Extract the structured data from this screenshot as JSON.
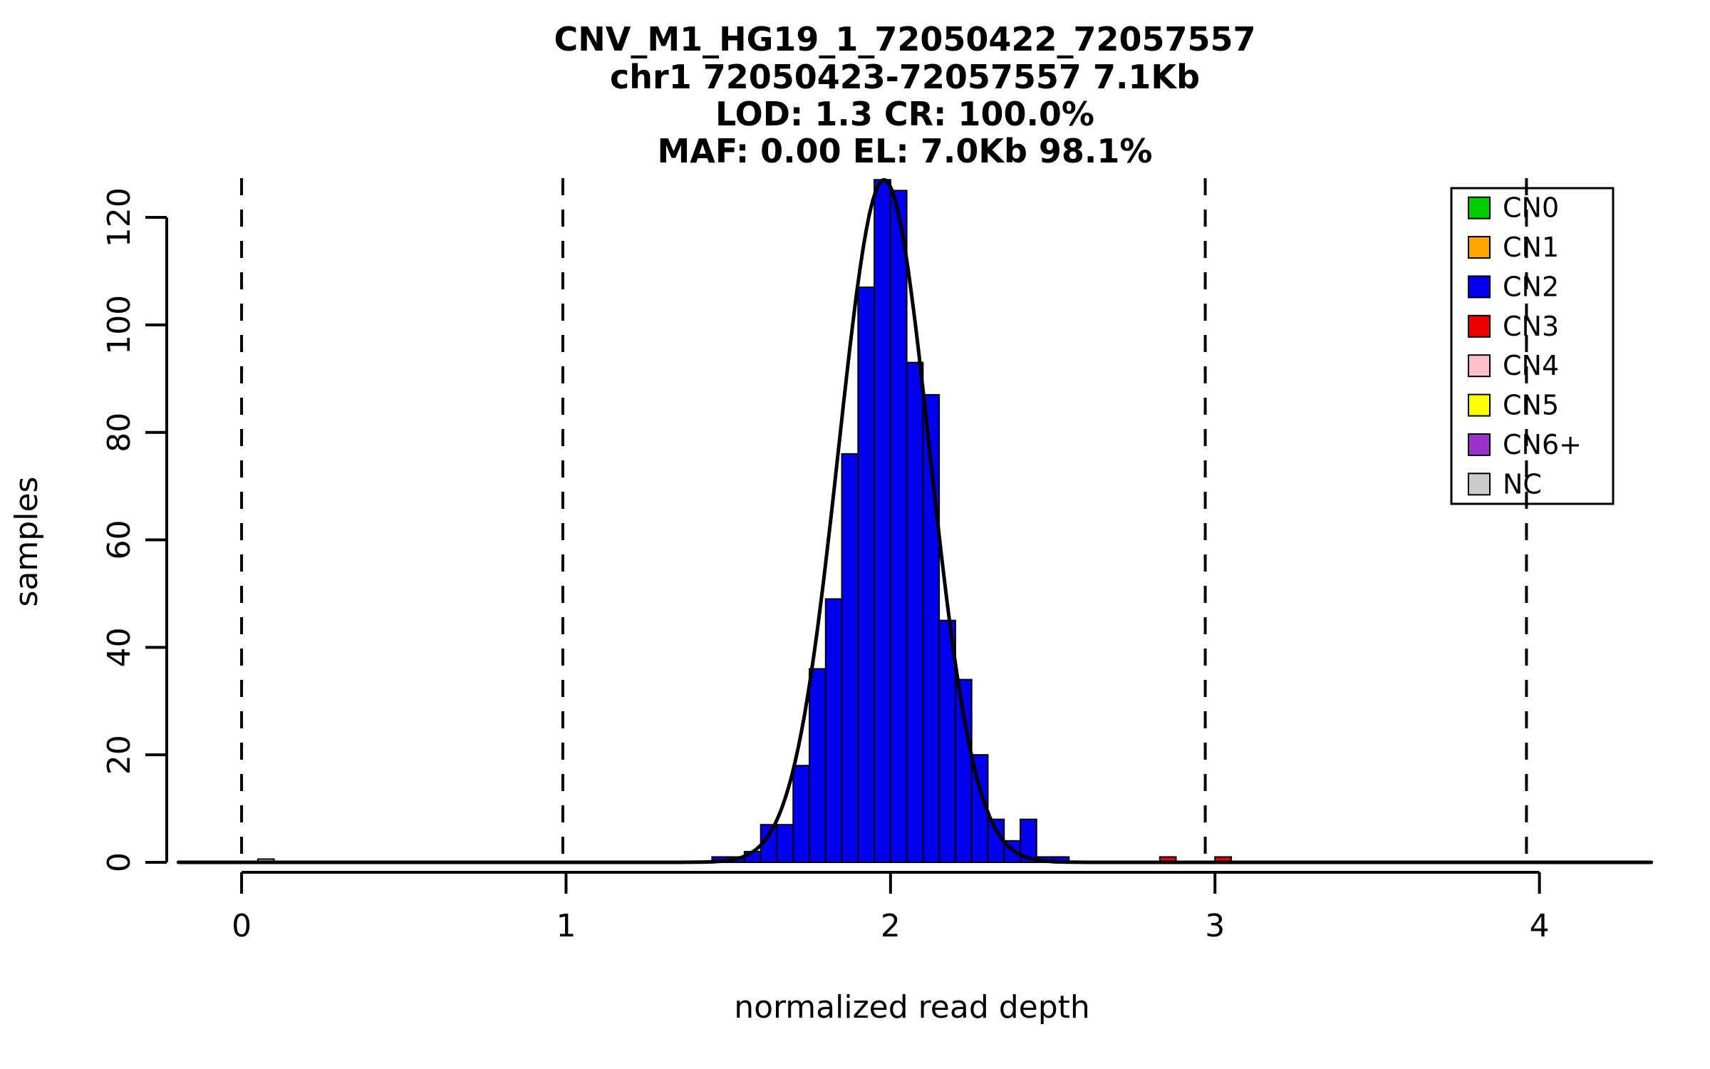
{
  "title": {
    "line1": "CNV_M1_HG19_1_72050422_72057557",
    "line2": "chr1 72050423-72057557 7.1Kb",
    "line3": "LOD: 1.3 CR: 100.0%",
    "line4": "MAF: 0.00 EL: 7.0Kb 98.1%"
  },
  "axes": {
    "x_label": "normalized read depth",
    "y_label": "samples",
    "x_ticks": [
      0,
      1,
      2,
      3,
      4
    ],
    "y_ticks": [
      0,
      20,
      40,
      60,
      80,
      100,
      120
    ],
    "xlim": [
      -0.2,
      4.35
    ],
    "ylim": [
      0,
      127.3
    ]
  },
  "chart_data": {
    "type": "bar",
    "title": "CNV_M1_HG19_1_72050422_72057557",
    "subtitle_lines": [
      "chr1 72050423-72057557 7.1Kb",
      "LOD: 1.3 CR: 100.0%",
      "MAF: 0.00 EL: 7.0Kb 98.1%"
    ],
    "xlabel": "normalized read depth",
    "ylabel": "samples",
    "xlim": [
      -0.2,
      4.35
    ],
    "ylim": [
      0,
      127.3
    ],
    "grid": false,
    "bin_width": 0.05,
    "series": [
      {
        "name": "CN2",
        "color": "#0000EE",
        "bars": [
          [
            1.45,
            1
          ],
          [
            1.5,
            1
          ],
          [
            1.55,
            2
          ],
          [
            1.6,
            7
          ],
          [
            1.65,
            7
          ],
          [
            1.7,
            18
          ],
          [
            1.75,
            36
          ],
          [
            1.8,
            49
          ],
          [
            1.85,
            76
          ],
          [
            1.9,
            107
          ],
          [
            1.95,
            127
          ],
          [
            2.0,
            125
          ],
          [
            2.05,
            93
          ],
          [
            2.1,
            87
          ],
          [
            2.15,
            45
          ],
          [
            2.2,
            34
          ],
          [
            2.25,
            20
          ],
          [
            2.3,
            8
          ],
          [
            2.35,
            4
          ],
          [
            2.4,
            8
          ],
          [
            2.45,
            1
          ],
          [
            2.5,
            1
          ]
        ]
      },
      {
        "name": "CN3",
        "color": "#EE0000",
        "bars": [
          [
            2.83,
            1
          ],
          [
            3.0,
            1
          ]
        ]
      },
      {
        "name": "NC",
        "color": "#CCCCCC",
        "bars": [
          [
            0.05,
            0.6
          ]
        ]
      }
    ],
    "fit_curve": {
      "mean": 1.98,
      "sd": 0.14,
      "peak": 127
    },
    "dashed_lines_x": [
      0,
      0.99,
      1.98,
      2.97,
      3.96
    ],
    "legend": {
      "position": "top-right",
      "entries": [
        {
          "label": "CN0",
          "color": "#00CC00"
        },
        {
          "label": "CN1",
          "color": "#FFA500"
        },
        {
          "label": "CN2",
          "color": "#0000EE"
        },
        {
          "label": "CN3",
          "color": "#EE0000"
        },
        {
          "label": "CN4",
          "color": "#FFC0CB"
        },
        {
          "label": "CN5",
          "color": "#FFFF00"
        },
        {
          "label": "CN6+",
          "color": "#9933CC"
        },
        {
          "label": "NC",
          "color": "#CCCCCC"
        }
      ]
    }
  }
}
